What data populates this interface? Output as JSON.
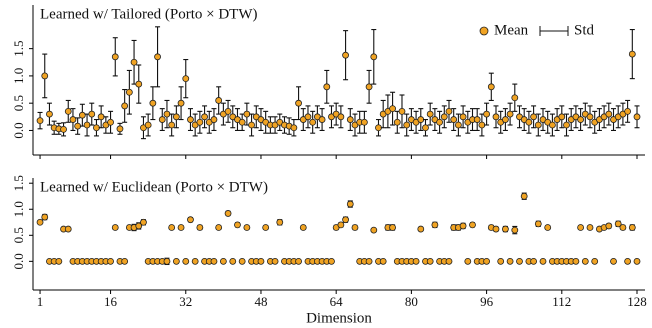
{
  "chart_data": [
    {
      "type": "errorbar",
      "title": "Learned w/ Tailored (Porto × DTW)",
      "x": [
        1,
        2,
        3,
        4,
        5,
        6,
        7,
        8,
        9,
        10,
        11,
        12,
        13,
        14,
        15,
        16,
        17,
        18,
        19,
        20,
        21,
        22,
        23,
        24,
        25,
        26,
        27,
        28,
        29,
        30,
        31,
        32,
        33,
        34,
        35,
        36,
        37,
        38,
        39,
        40,
        41,
        42,
        43,
        44,
        45,
        46,
        47,
        48,
        49,
        50,
        51,
        52,
        53,
        54,
        55,
        56,
        57,
        58,
        59,
        60,
        61,
        62,
        63,
        64,
        65,
        66,
        67,
        68,
        69,
        70,
        71,
        72,
        73,
        74,
        75,
        76,
        77,
        78,
        79,
        80,
        81,
        82,
        83,
        84,
        85,
        86,
        87,
        88,
        89,
        90,
        91,
        92,
        93,
        94,
        95,
        96,
        97,
        98,
        99,
        100,
        101,
        102,
        103,
        104,
        105,
        106,
        107,
        108,
        109,
        110,
        111,
        112,
        113,
        114,
        115,
        116,
        117,
        118,
        119,
        120,
        121,
        122,
        123,
        124,
        125,
        126,
        127,
        128
      ],
      "series": [
        {
          "name": "Mean",
          "error_name": "Std",
          "color": "#f0a323",
          "values": [
            0.18,
            1.0,
            0.3,
            0.05,
            0.03,
            0.02,
            0.35,
            0.2,
            0.08,
            0.28,
            0.1,
            0.3,
            0.05,
            0.25,
            0.1,
            0.15,
            1.35,
            0.03,
            0.45,
            0.7,
            1.25,
            0.85,
            0.05,
            0.1,
            0.5,
            1.35,
            0.2,
            0.3,
            0.1,
            0.25,
            0.5,
            0.95,
            0.2,
            0.1,
            0.15,
            0.25,
            0.15,
            0.2,
            0.55,
            0.3,
            0.35,
            0.25,
            0.2,
            0.15,
            0.3,
            0.1,
            0.25,
            0.2,
            0.15,
            0.1,
            0.1,
            0.15,
            0.1,
            0.08,
            0.05,
            0.5,
            0.2,
            0.25,
            0.15,
            0.25,
            0.2,
            0.8,
            0.25,
            0.3,
            0.25,
            1.38,
            0.2,
            0.1,
            0.15,
            0.15,
            0.8,
            1.35,
            0.05,
            0.3,
            0.35,
            0.4,
            0.15,
            0.35,
            0.1,
            0.2,
            0.15,
            0.2,
            0.05,
            0.3,
            0.2,
            0.15,
            0.25,
            0.35,
            0.2,
            0.1,
            0.25,
            0.15,
            0.2,
            0.2,
            0.1,
            0.3,
            0.8,
            0.25,
            0.15,
            0.2,
            0.3,
            0.6,
            0.25,
            0.2,
            0.15,
            0.25,
            0.1,
            0.2,
            0.15,
            0.1,
            0.2,
            0.25,
            0.1,
            0.2,
            0.25,
            0.2,
            0.3,
            0.25,
            0.15,
            0.2,
            0.25,
            0.3,
            0.2,
            0.25,
            0.3,
            0.35,
            1.4,
            0.25
          ],
          "errors": [
            0.15,
            0.4,
            0.2,
            0.12,
            0.1,
            0.12,
            0.2,
            0.2,
            0.15,
            0.2,
            0.2,
            0.2,
            0.15,
            0.2,
            0.15,
            0.2,
            0.35,
            0.1,
            0.3,
            0.4,
            0.4,
            0.35,
            0.2,
            0.2,
            0.3,
            0.55,
            0.2,
            0.25,
            0.2,
            0.2,
            0.3,
            0.35,
            0.2,
            0.2,
            0.2,
            0.2,
            0.2,
            0.2,
            0.25,
            0.2,
            0.2,
            0.2,
            0.2,
            0.15,
            0.2,
            0.2,
            0.2,
            0.2,
            0.2,
            0.15,
            0.15,
            0.15,
            0.15,
            0.15,
            0.15,
            0.3,
            0.2,
            0.2,
            0.2,
            0.2,
            0.2,
            0.3,
            0.2,
            0.2,
            0.2,
            0.45,
            0.2,
            0.2,
            0.2,
            0.2,
            0.3,
            0.5,
            0.15,
            0.25,
            0.3,
            0.3,
            0.2,
            0.3,
            0.2,
            0.2,
            0.2,
            0.2,
            0.15,
            0.2,
            0.2,
            0.2,
            0.2,
            0.2,
            0.2,
            0.2,
            0.2,
            0.2,
            0.2,
            0.2,
            0.2,
            0.2,
            0.25,
            0.2,
            0.2,
            0.2,
            0.2,
            0.25,
            0.2,
            0.2,
            0.2,
            0.2,
            0.2,
            0.2,
            0.2,
            0.2,
            0.2,
            0.2,
            0.2,
            0.2,
            0.2,
            0.2,
            0.2,
            0.2,
            0.2,
            0.2,
            0.2,
            0.2,
            0.2,
            0.2,
            0.2,
            0.2,
            0.45,
            0.2
          ]
        }
      ],
      "xlim": [
        -0.5,
        129.7
      ],
      "xticks": [
        1,
        16,
        32,
        48,
        64,
        80,
        96,
        112,
        128
      ],
      "show_xtick_labels": false,
      "ylim": [
        -0.45,
        2.3
      ],
      "yticks": [
        {
          "value": 0,
          "label": "0.0"
        },
        {
          "value": 0.5,
          "label": "0.5"
        },
        {
          "value": 1,
          "label": "1.0"
        },
        {
          "value": 1.5,
          "label": "1.5"
        }
      ],
      "legend": "upper right"
    },
    {
      "type": "errorbar",
      "title": "Learned w/ Euclidean (Porto × DTW)",
      "xlabel": "Dimension",
      "x": [
        1,
        2,
        3,
        4,
        5,
        6,
        7,
        8,
        9,
        10,
        11,
        12,
        13,
        14,
        15,
        16,
        17,
        18,
        19,
        20,
        21,
        22,
        23,
        24,
        25,
        26,
        27,
        28,
        29,
        30,
        31,
        32,
        33,
        34,
        35,
        36,
        37,
        38,
        39,
        40,
        41,
        42,
        43,
        44,
        45,
        46,
        47,
        48,
        49,
        50,
        51,
        52,
        53,
        54,
        55,
        56,
        57,
        58,
        59,
        60,
        61,
        62,
        63,
        64,
        65,
        66,
        67,
        68,
        69,
        70,
        71,
        72,
        73,
        74,
        75,
        76,
        77,
        78,
        79,
        80,
        81,
        82,
        83,
        84,
        85,
        86,
        87,
        88,
        89,
        90,
        91,
        92,
        93,
        94,
        95,
        96,
        97,
        98,
        99,
        100,
        101,
        102,
        103,
        104,
        105,
        106,
        107,
        108,
        109,
        110,
        111,
        112,
        113,
        114,
        115,
        116,
        117,
        118,
        119,
        120,
        121,
        122,
        123,
        124,
        125,
        126,
        127,
        128
      ],
      "series": [
        {
          "name": "Mean",
          "error_name": "Std",
          "color": "#f0a323",
          "values": [
            0.75,
            0.85,
            0,
            0,
            0,
            0.62,
            0.62,
            0,
            0,
            0,
            0,
            0,
            0,
            0,
            0,
            0,
            0.65,
            0,
            0,
            0.65,
            0.65,
            0.68,
            0.75,
            0,
            0,
            0,
            0,
            0,
            0.65,
            0,
            0.65,
            0,
            0.8,
            0,
            0.65,
            0,
            0,
            0,
            0.65,
            0,
            0.92,
            0,
            0.7,
            0,
            0.65,
            0,
            0,
            0,
            0.65,
            0,
            0,
            0.75,
            0,
            0,
            0,
            0,
            0.65,
            0,
            0,
            0,
            0,
            0,
            0,
            0.65,
            0.7,
            0.8,
            1.1,
            0.65,
            0,
            0,
            0,
            0.6,
            0,
            0,
            0.65,
            0.65,
            0,
            0,
            0,
            0,
            0,
            0.62,
            0,
            0,
            0.7,
            0,
            0,
            0,
            0.65,
            0.65,
            0.68,
            0,
            0.7,
            0,
            0,
            0,
            0.65,
            0.62,
            0,
            0.62,
            0,
            0.6,
            0,
            1.25,
            0,
            0,
            0.72,
            0,
            0.65,
            0,
            0,
            0,
            0,
            0,
            0,
            0.65,
            0,
            0.65,
            0,
            0.62,
            0.65,
            0.68,
            0,
            0.72,
            0.65,
            0,
            0.65,
            0
          ],
          "errors": [
            0.03,
            0.05,
            0.01,
            0.01,
            0.01,
            0.03,
            0.03,
            0.01,
            0.01,
            0.01,
            0.01,
            0.01,
            0.01,
            0.01,
            0.01,
            0.01,
            0.03,
            0.01,
            0.01,
            0.03,
            0.06,
            0.06,
            0.05,
            0.01,
            0.01,
            0.01,
            0.01,
            0.06,
            0.03,
            0.01,
            0.03,
            0.01,
            0.04,
            0.01,
            0.04,
            0.01,
            0.01,
            0.01,
            0.03,
            0.01,
            0.04,
            0.01,
            0.04,
            0.01,
            0.03,
            0.01,
            0.01,
            0.01,
            0.03,
            0.01,
            0.01,
            0.05,
            0.01,
            0.01,
            0.01,
            0.01,
            0.03,
            0.01,
            0.01,
            0.01,
            0.01,
            0.01,
            0.01,
            0.04,
            0.04,
            0.05,
            0.06,
            0.04,
            0.01,
            0.01,
            0.01,
            0.03,
            0.01,
            0.01,
            0.05,
            0.05,
            0.01,
            0.01,
            0.01,
            0.01,
            0.01,
            0.03,
            0.01,
            0.01,
            0.05,
            0.01,
            0.01,
            0.01,
            0.05,
            0.05,
            0.05,
            0.01,
            0.04,
            0.01,
            0.01,
            0.01,
            0.04,
            0.04,
            0.01,
            0.05,
            0.01,
            0.07,
            0.01,
            0.06,
            0.01,
            0.01,
            0.05,
            0.01,
            0.03,
            0.01,
            0.01,
            0.01,
            0.01,
            0.01,
            0.01,
            0.03,
            0.01,
            0.03,
            0.01,
            0.03,
            0.03,
            0.04,
            0.01,
            0.05,
            0.04,
            0.01,
            0.05,
            0.01
          ]
        }
      ],
      "xlim": [
        -0.5,
        129.7
      ],
      "xticks": [
        1,
        16,
        32,
        48,
        64,
        80,
        96,
        112,
        128
      ],
      "show_xtick_labels": true,
      "ylim": [
        -0.55,
        1.6
      ],
      "yticks": [
        {
          "value": 0,
          "label": "0.0"
        },
        {
          "value": 0.5,
          "label": "0.5"
        },
        {
          "value": 1,
          "label": "1.0"
        },
        {
          "value": 1.5,
          "label": "1.5"
        }
      ]
    }
  ]
}
